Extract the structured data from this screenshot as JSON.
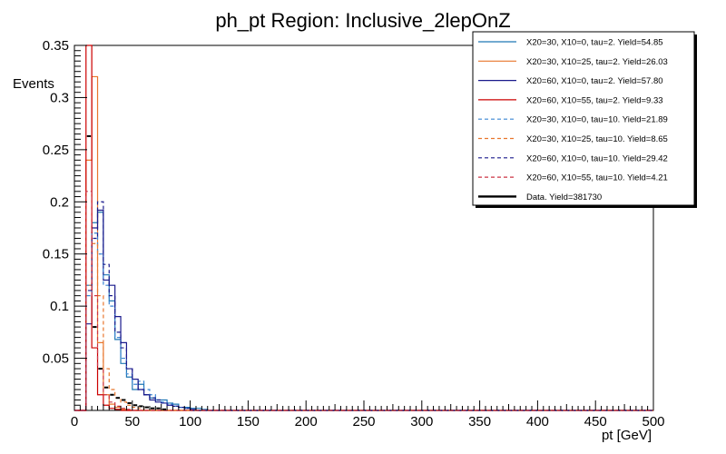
{
  "chart_data": {
    "type": "histogram",
    "title": "ph_pt Region: Inclusive_2lepOnZ",
    "xlabel": "pt [GeV]",
    "ylabel": "Events",
    "xlim": [
      0,
      500
    ],
    "ylim": [
      0,
      0.35
    ],
    "bin_width": 5,
    "x_ticks": [
      0,
      50,
      100,
      150,
      200,
      250,
      300,
      350,
      400,
      450,
      500
    ],
    "y_ticks": [
      0.05,
      0.1,
      0.15,
      0.2,
      0.25,
      0.3,
      0.35
    ],
    "y_tick_labels": [
      "0.05",
      "0.1",
      "0.15",
      "0.2",
      "0.25",
      "0.3",
      "0.35"
    ],
    "legend_position": "top-right",
    "series": [
      {
        "name": "X20=30, X10=0, tau=2. Yield=54.85",
        "color": "#1f77b4",
        "style": "solid",
        "values": [
          0.0,
          0.0,
          0.12,
          0.18,
          0.19,
          0.13,
          0.105,
          0.068,
          0.045,
          0.032,
          0.02,
          0.025,
          0.015,
          0.012,
          0.01,
          0.01,
          0.007,
          0.006,
          0.003,
          0.003,
          0.002,
          0.002,
          0.001
        ]
      },
      {
        "name": "X20=30, X10=25, tau=2. Yield=26.03",
        "color": "#e8762c",
        "style": "solid",
        "values": [
          0.0,
          0.0,
          0.24,
          0.32,
          0.065,
          0.015,
          0.006,
          0.003,
          0.001
        ]
      },
      {
        "name": "X20=60, X10=0, tau=2. Yield=57.80",
        "color": "#1a1a8c",
        "style": "solid",
        "values": [
          0.0,
          0.0,
          0.083,
          0.175,
          0.192,
          0.125,
          0.12,
          0.09,
          0.065,
          0.04,
          0.03,
          0.02,
          0.015,
          0.01,
          0.008,
          0.007,
          0.005,
          0.004,
          0.003,
          0.002,
          0.001
        ]
      },
      {
        "name": "X20=60, X10=55, tau=2. Yield=9.33",
        "color": "#cc0000",
        "style": "solid",
        "values": [
          0.0,
          0.0,
          0.35,
          0.06,
          0.015,
          0.005,
          0.002,
          0.001
        ]
      },
      {
        "name": "X20=30, X10=0, tau=10. Yield=21.89",
        "color": "#3a86d4",
        "style": "dashed",
        "values": [
          0.0,
          0.0,
          0.11,
          0.17,
          0.15,
          0.12,
          0.1,
          0.07,
          0.05,
          0.035,
          0.025,
          0.028,
          0.02,
          0.015,
          0.01,
          0.008,
          0.006,
          0.004,
          0.003,
          0.002
        ]
      },
      {
        "name": "X20=30, X10=25, tau=10. Yield=8.65",
        "color": "#e8762c",
        "style": "dashed",
        "values": [
          0.0,
          0.0,
          0.12,
          0.16,
          0.11,
          0.04,
          0.02,
          0.012,
          0.008,
          0.005,
          0.003,
          0.002
        ]
      },
      {
        "name": "X20=60, X10=0, tau=10. Yield=29.42",
        "color": "#1a1a8c",
        "style": "dashed",
        "values": [
          0.0,
          0.0,
          0.115,
          0.165,
          0.2,
          0.14,
          0.11,
          0.075,
          0.06,
          0.04,
          0.03,
          0.02,
          0.015,
          0.012,
          0.01,
          0.007,
          0.005,
          0.004,
          0.003,
          0.002
        ]
      },
      {
        "name": "X20=60, X10=55, tau=10. Yield=4.21",
        "color": "#cc3344",
        "style": "dashed",
        "values": [
          0.0,
          0.0,
          0.21,
          0.11,
          0.04,
          0.015,
          0.008,
          0.004,
          0.002,
          0.001
        ]
      }
    ],
    "data_points": {
      "name": "Data. Yield=381730",
      "color": "#000000",
      "values": [
        0.0,
        0.0,
        0.263,
        0.08,
        0.04,
        0.022,
        0.015,
        0.012,
        0.01,
        0.007,
        0.005,
        0.004,
        0.003,
        0.002,
        0.002,
        0.001
      ]
    }
  }
}
